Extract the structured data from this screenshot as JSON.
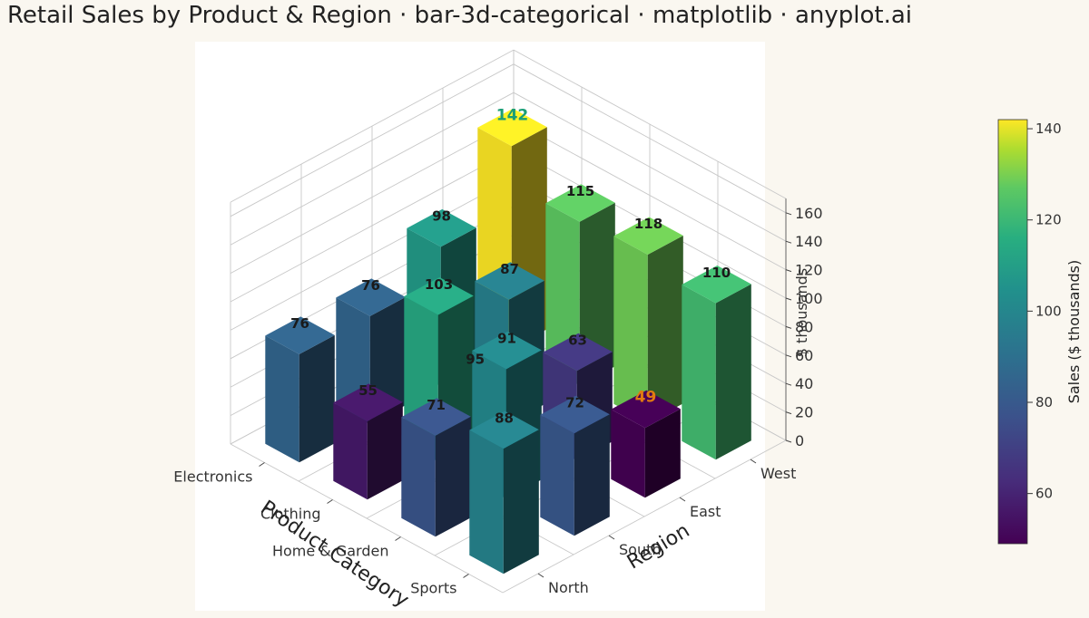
{
  "title": "Retail Sales by Product & Region  ·  bar-3d-categorical · matplotlib · anyplot.ai",
  "chart_data": {
    "type": "bar",
    "subtype": "3d-categorical",
    "categories": [
      "Electronics",
      "Clothing",
      "Home & Garden",
      "Sports"
    ],
    "regions": [
      "North",
      "South",
      "East",
      "West"
    ],
    "series": [
      {
        "name": "West",
        "values": [
          142,
          115,
          118,
          110
        ]
      },
      {
        "name": "East",
        "values": [
          98,
          87,
          63,
          49
        ]
      },
      {
        "name": "South",
        "values": [
          76,
          103,
          91,
          72
        ]
      },
      {
        "name": "North",
        "values": [
          76,
          55,
          71,
          88
        ]
      }
    ],
    "value_labels": {
      "West": [
        "142",
        "115",
        "118",
        "110"
      ],
      "East": [
        "98",
        "87",
        "63",
        "49"
      ],
      "South": [
        "76",
        "103",
        "91",
        "72"
      ],
      "North": [
        "76",
        "55",
        "71",
        "88"
      ]
    },
    "extra_labels": [
      "95"
    ],
    "xlabel": "Product Category",
    "ylabel": "Region",
    "zlabel": "$ thousands",
    "zticks": [
      0,
      20,
      40,
      60,
      80,
      100,
      120,
      140,
      160
    ],
    "zlim": [
      0,
      170
    ],
    "highlight": {
      "max_label": "142",
      "max_color": "#1a9e77",
      "min_label": "49",
      "min_color": "#e07b11"
    },
    "colormap": "viridis",
    "colorbar": {
      "label": "Sales ($ thousands)",
      "ticks": [
        60,
        80,
        100,
        120,
        140
      ],
      "range": [
        49,
        142
      ]
    },
    "grid": true
  }
}
